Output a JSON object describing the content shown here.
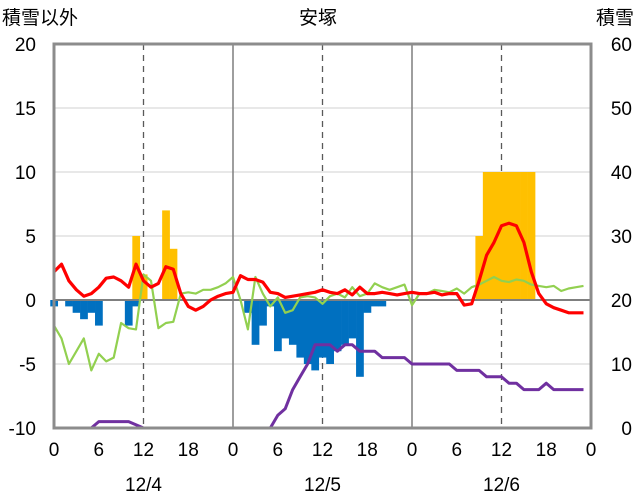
{
  "chart_data": {
    "type": "bar+line",
    "title": "安塚",
    "left_axis_label": "積雪以外",
    "right_axis_label": "積雪",
    "left_ylim": [
      -10,
      20
    ],
    "left_ticks": [
      -10,
      -5,
      0,
      5,
      10,
      15,
      20
    ],
    "right_ylim": [
      0,
      60
    ],
    "right_ticks": [
      0,
      10,
      20,
      30,
      40,
      50,
      60
    ],
    "x_range_hours": [
      0,
      72
    ],
    "x_tick_labels": [
      "0",
      "6",
      "12",
      "18",
      "0",
      "6",
      "12",
      "18",
      "0",
      "6",
      "12",
      "18",
      "0"
    ],
    "date_labels": [
      {
        "label": "12/4",
        "hour": 12
      },
      {
        "label": "12/5",
        "hour": 36
      },
      {
        "label": "12/6",
        "hour": 60
      }
    ],
    "grid": {
      "solid_day_lines": [
        24,
        48
      ],
      "dashed_noon_lines": [
        12,
        36,
        60
      ],
      "horizontal_lines": [
        -5,
        5,
        10,
        15
      ]
    },
    "colors": {
      "precipitation": "#ffc000",
      "snowfall": "#0070c0",
      "temperature": "#ff0000",
      "humidity_like": "#92d050",
      "snow_depth": "#7030a0"
    },
    "series": [
      {
        "key": "precipitation",
        "kind": "bar_up",
        "axis": "left",
        "points": [
          [
            11,
            5
          ],
          [
            12,
            2
          ],
          [
            15,
            7
          ],
          [
            16,
            4
          ],
          [
            57,
            5
          ],
          [
            58,
            10
          ],
          [
            59,
            10
          ],
          [
            60,
            10
          ],
          [
            61,
            10
          ],
          [
            62,
            10
          ],
          [
            63,
            10
          ],
          [
            64,
            10
          ]
        ]
      },
      {
        "key": "snowfall",
        "kind": "bar_down",
        "axis": "left",
        "points": [
          [
            0,
            -0.5
          ],
          [
            2,
            -0.5
          ],
          [
            3,
            -1
          ],
          [
            4,
            -1.5
          ],
          [
            5,
            -1
          ],
          [
            6,
            -2
          ],
          [
            10,
            -2
          ],
          [
            11,
            -0.5
          ],
          [
            26,
            -1
          ],
          [
            27,
            -3.5
          ],
          [
            28,
            -2
          ],
          [
            29,
            -0.5
          ],
          [
            30,
            -4
          ],
          [
            31,
            -3
          ],
          [
            32,
            -3.5
          ],
          [
            33,
            -4.5
          ],
          [
            34,
            -5
          ],
          [
            35,
            -5.5
          ],
          [
            36,
            -4.5
          ],
          [
            37,
            -5
          ],
          [
            38,
            -4
          ],
          [
            39,
            -3.5
          ],
          [
            40,
            -3
          ],
          [
            41,
            -6
          ],
          [
            42,
            -1
          ],
          [
            43,
            -0.5
          ],
          [
            44,
            -0.5
          ]
        ]
      },
      {
        "key": "temperature",
        "kind": "line",
        "axis": "left",
        "points": [
          [
            0,
            2.2
          ],
          [
            1,
            2.8
          ],
          [
            2,
            1.5
          ],
          [
            3,
            0.8
          ],
          [
            4,
            0.3
          ],
          [
            5,
            0.5
          ],
          [
            6,
            1
          ],
          [
            7,
            1.7
          ],
          [
            8,
            1.8
          ],
          [
            9,
            1.5
          ],
          [
            10,
            1
          ],
          [
            11,
            2.8
          ],
          [
            12,
            1.5
          ],
          [
            13,
            1
          ],
          [
            14,
            1.3
          ],
          [
            15,
            2.6
          ],
          [
            16,
            2.4
          ],
          [
            17,
            0.5
          ],
          [
            18,
            -0.5
          ],
          [
            19,
            -0.8
          ],
          [
            20,
            -0.5
          ],
          [
            21,
            0
          ],
          [
            22,
            0.3
          ],
          [
            23,
            0.5
          ],
          [
            24,
            0.6
          ],
          [
            25,
            1.9
          ],
          [
            26,
            1.6
          ],
          [
            27,
            1.6
          ],
          [
            28,
            1.4
          ],
          [
            29,
            0.6
          ],
          [
            30,
            0.5
          ],
          [
            31,
            0.2
          ],
          [
            32,
            0.3
          ],
          [
            33,
            0.4
          ],
          [
            34,
            0.5
          ],
          [
            35,
            0.6
          ],
          [
            36,
            0.8
          ],
          [
            37,
            0.6
          ],
          [
            38,
            0.5
          ],
          [
            39,
            0.8
          ],
          [
            40,
            0.4
          ],
          [
            41,
            1
          ],
          [
            42,
            0.5
          ],
          [
            43,
            0.5
          ],
          [
            44,
            0.6
          ],
          [
            45,
            0.5
          ],
          [
            46,
            0.4
          ],
          [
            47,
            0.5
          ],
          [
            48,
            0.6
          ],
          [
            49,
            0.5
          ],
          [
            50,
            0.5
          ],
          [
            51,
            0.6
          ],
          [
            52,
            0.4
          ],
          [
            53,
            0.5
          ],
          [
            54,
            0.5
          ],
          [
            55,
            -0.4
          ],
          [
            56,
            -0.3
          ],
          [
            57,
            1.5
          ],
          [
            58,
            3.5
          ],
          [
            59,
            4.5
          ],
          [
            60,
            5.8
          ],
          [
            61,
            6
          ],
          [
            62,
            5.8
          ],
          [
            63,
            4.5
          ],
          [
            64,
            2.2
          ],
          [
            65,
            0.5
          ],
          [
            66,
            -0.3
          ],
          [
            67,
            -0.6
          ],
          [
            68,
            -0.8
          ],
          [
            69,
            -1
          ],
          [
            70,
            -1
          ],
          [
            71,
            -1
          ]
        ]
      },
      {
        "key": "humidity_like",
        "kind": "line",
        "axis": "left",
        "points": [
          [
            0,
            -2
          ],
          [
            1,
            -3
          ],
          [
            2,
            -5
          ],
          [
            3,
            -4
          ],
          [
            4,
            -3
          ],
          [
            5,
            -5.5
          ],
          [
            6,
            -4.2
          ],
          [
            7,
            -4.8
          ],
          [
            8,
            -4.5
          ],
          [
            9,
            -1.8
          ],
          [
            10,
            -2.2
          ],
          [
            11,
            -2.3
          ],
          [
            12,
            2
          ],
          [
            13,
            1.5
          ],
          [
            14,
            -2.2
          ],
          [
            15,
            -1.8
          ],
          [
            16,
            -1.7
          ],
          [
            17,
            0.5
          ],
          [
            18,
            0.6
          ],
          [
            19,
            0.5
          ],
          [
            20,
            0.8
          ],
          [
            21,
            0.8
          ],
          [
            22,
            1
          ],
          [
            23,
            1.3
          ],
          [
            24,
            1.8
          ],
          [
            25,
            0
          ],
          [
            26,
            -2.3
          ],
          [
            27,
            1.8
          ],
          [
            28,
            0.5
          ],
          [
            29,
            -0.5
          ],
          [
            30,
            0.2
          ],
          [
            31,
            -1
          ],
          [
            32,
            -0.8
          ],
          [
            33,
            0.2
          ],
          [
            34,
            0.3
          ],
          [
            35,
            0.2
          ],
          [
            36,
            -0.3
          ],
          [
            37,
            0.3
          ],
          [
            38,
            0.5
          ],
          [
            39,
            0.2
          ],
          [
            40,
            1
          ],
          [
            41,
            0.3
          ],
          [
            42,
            0.5
          ],
          [
            43,
            1.3
          ],
          [
            44,
            1
          ],
          [
            45,
            0.8
          ],
          [
            46,
            1
          ],
          [
            47,
            1.2
          ],
          [
            48,
            -0.4
          ],
          [
            49,
            0.5
          ],
          [
            50,
            0.5
          ],
          [
            51,
            0.8
          ],
          [
            52,
            0.7
          ],
          [
            53,
            0.6
          ],
          [
            54,
            0.9
          ],
          [
            55,
            0.5
          ],
          [
            56,
            1
          ],
          [
            57,
            1.2
          ],
          [
            58,
            1.5
          ],
          [
            59,
            1.8
          ],
          [
            60,
            1.5
          ],
          [
            61,
            1.4
          ],
          [
            62,
            1.6
          ],
          [
            63,
            1.5
          ],
          [
            64,
            1.2
          ],
          [
            65,
            1.1
          ],
          [
            66,
            1
          ],
          [
            67,
            1.1
          ],
          [
            68,
            0.7
          ],
          [
            69,
            0.9
          ],
          [
            70,
            1
          ],
          [
            71,
            1.1
          ]
        ]
      },
      {
        "key": "snow_depth",
        "kind": "line",
        "axis": "right",
        "points": [
          [
            0,
            0
          ],
          [
            5,
            0
          ],
          [
            6,
            1
          ],
          [
            9,
            1
          ],
          [
            10,
            1
          ],
          [
            12,
            0
          ],
          [
            29,
            0
          ],
          [
            30,
            2
          ],
          [
            31,
            3
          ],
          [
            32,
            6
          ],
          [
            33,
            8
          ],
          [
            34,
            10
          ],
          [
            35,
            13
          ],
          [
            36,
            13
          ],
          [
            37,
            13
          ],
          [
            38,
            12
          ],
          [
            39,
            13
          ],
          [
            40,
            13
          ],
          [
            41,
            12
          ],
          [
            42,
            12
          ],
          [
            43,
            12
          ],
          [
            44,
            11
          ],
          [
            46,
            11
          ],
          [
            47,
            11
          ],
          [
            48,
            10
          ],
          [
            49,
            10
          ],
          [
            50,
            10
          ],
          [
            51,
            10
          ],
          [
            52,
            10
          ],
          [
            53,
            10
          ],
          [
            54,
            9
          ],
          [
            55,
            9
          ],
          [
            56,
            9
          ],
          [
            57,
            9
          ],
          [
            58,
            8
          ],
          [
            59,
            8
          ],
          [
            60,
            8
          ],
          [
            61,
            7
          ],
          [
            62,
            7
          ],
          [
            63,
            6
          ],
          [
            64,
            6
          ],
          [
            65,
            6
          ],
          [
            66,
            7
          ],
          [
            67,
            6
          ],
          [
            68,
            6
          ],
          [
            69,
            6
          ],
          [
            70,
            6
          ],
          [
            71,
            6
          ]
        ]
      }
    ]
  }
}
